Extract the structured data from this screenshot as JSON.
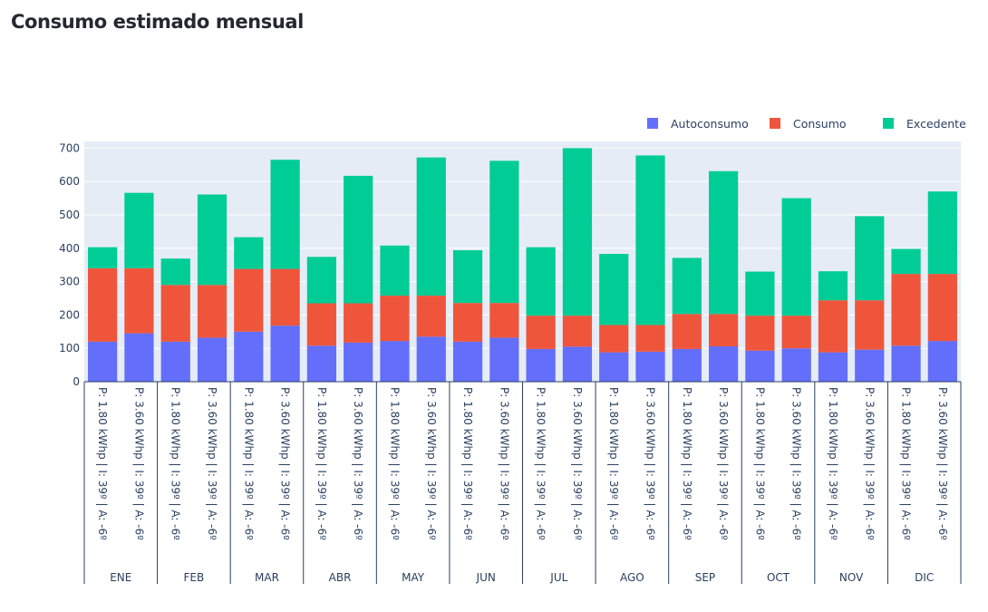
{
  "page": {
    "title": "Consumo estimado mensual"
  },
  "colors": {
    "autoconsumo": "#636efa",
    "consumo": "#ef553b",
    "excedente": "#00cc96",
    "plot_bg": "#e5ecf6",
    "axis": "#2a3f5f"
  },
  "chart_data": {
    "type": "bar",
    "barmode": "stack",
    "title": "",
    "xlabel": "",
    "ylabel": "",
    "ylim": [
      0,
      720
    ],
    "yticks": [
      0,
      100,
      200,
      300,
      400,
      500,
      600,
      700
    ],
    "grid": true,
    "legend": {
      "placement": "top-right",
      "orientation": "horizontal"
    },
    "groups": [
      "ENE",
      "FEB",
      "MAR",
      "ABR",
      "MAY",
      "JUN",
      "JUL",
      "AGO",
      "SEP",
      "OCT",
      "NOV",
      "DIC"
    ],
    "subcategories": [
      "P: 1.80 kWhp | I: 39º | A: -6º",
      "P: 3.60 kWhp | I: 39º | A: -6º"
    ],
    "series": [
      {
        "name": "Autoconsumo",
        "color": "#636efa",
        "values": [
          120,
          145,
          120,
          132,
          150,
          168,
          108,
          117,
          122,
          135,
          120,
          132,
          98,
          105,
          88,
          90,
          98,
          106,
          93,
          100,
          88,
          96,
          108,
          122
        ]
      },
      {
        "name": "Consumo",
        "color": "#ef553b",
        "values": [
          220,
          195,
          170,
          158,
          188,
          170,
          127,
          118,
          136,
          123,
          116,
          104,
          100,
          93,
          82,
          80,
          105,
          97,
          105,
          98,
          156,
          148,
          215,
          201
        ]
      },
      {
        "name": "Excedente",
        "color": "#00cc96",
        "values": [
          63,
          226,
          79,
          271,
          95,
          327,
          139,
          382,
          150,
          414,
          158,
          426,
          205,
          502,
          213,
          508,
          168,
          428,
          132,
          352,
          87,
          252,
          75,
          247
        ]
      }
    ]
  }
}
